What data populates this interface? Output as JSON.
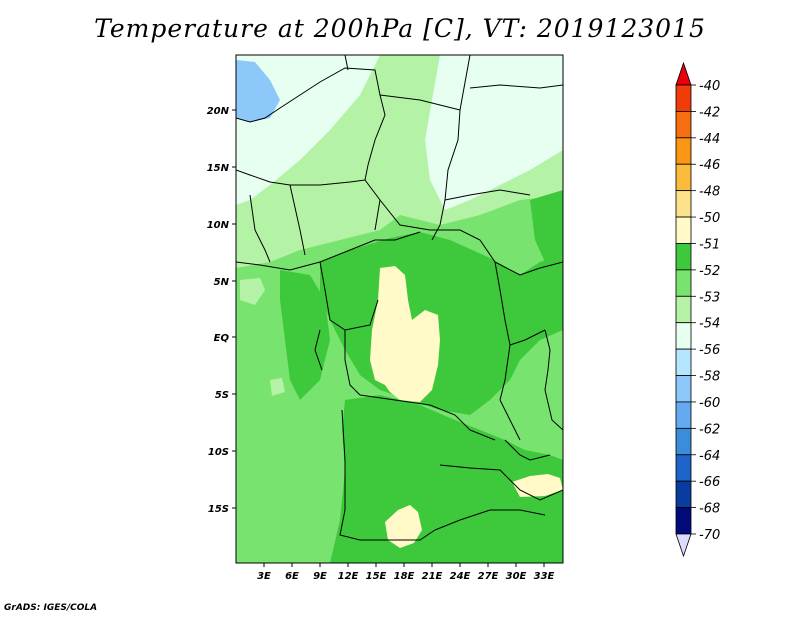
{
  "title": "Temperature at 200hPa [C], VT: 2019123015",
  "credit": "GrADS: IGES/COLA",
  "map": {
    "lat_labels": [
      "20N",
      "15N",
      "10N",
      "5N",
      "EQ",
      "5S",
      "10S",
      "15S"
    ],
    "lon_labels": [
      "3E",
      "6E",
      "9E",
      "12E",
      "15E",
      "18E",
      "21E",
      "24E",
      "27E",
      "30E",
      "33E"
    ]
  },
  "colorbar": {
    "labels": [
      "-40",
      "-42",
      "-44",
      "-46",
      "-48",
      "-50",
      "-51",
      "-52",
      "-53",
      "-54",
      "-56",
      "-58",
      "-60",
      "-62",
      "-64",
      "-66",
      "-68",
      "-70"
    ],
    "colors": [
      "#e8000a",
      "#f03c0a",
      "#f56e0f",
      "#fa9614",
      "#fbbc3c",
      "#fde28c",
      "#fffac8",
      "#3ec83c",
      "#78e36e",
      "#b4f3a6",
      "#e6fff0",
      "#b4e6ff",
      "#8cc8fa",
      "#64aaf0",
      "#3c8cdc",
      "#1e64c8",
      "#0a3ca0",
      "#000a78",
      "#dcdcff"
    ]
  },
  "fill_colors": {
    "very_light_green": "#b4f3a6",
    "light_green": "#78e36e",
    "green": "#3ec83c",
    "pale_cyan": "#e6fff0",
    "light_blue": "#8cc8fa",
    "yellow": "#fffac8",
    "border": "#000000"
  }
}
